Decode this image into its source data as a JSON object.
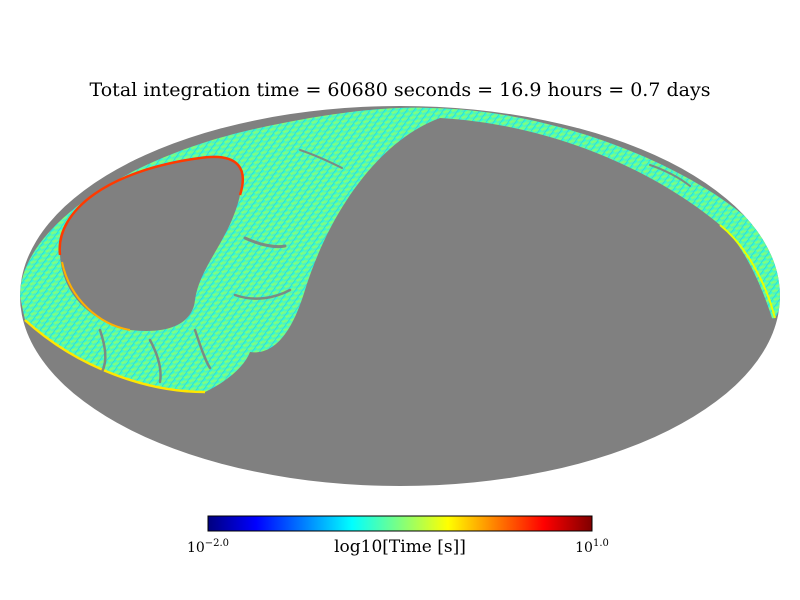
{
  "title": "Total integration time = 60680 seconds = 16.9 hours = 0.7 days",
  "projection": "mollweide",
  "colormap": {
    "name": "jet",
    "stops": [
      "#00007f",
      "#0000ff",
      "#007fff",
      "#00ffff",
      "#7fff7f",
      "#ffff00",
      "#ff7f00",
      "#ff0000",
      "#7f0000"
    ]
  },
  "colorbar": {
    "label": "log10[Time [s]]",
    "min_base": "10",
    "min_exp": "−2.0",
    "max_base": "10",
    "max_exp": "1.0",
    "range": [
      -2.0,
      1.0
    ]
  },
  "colors": {
    "unobserved": "#808080",
    "border": "#000000"
  }
}
